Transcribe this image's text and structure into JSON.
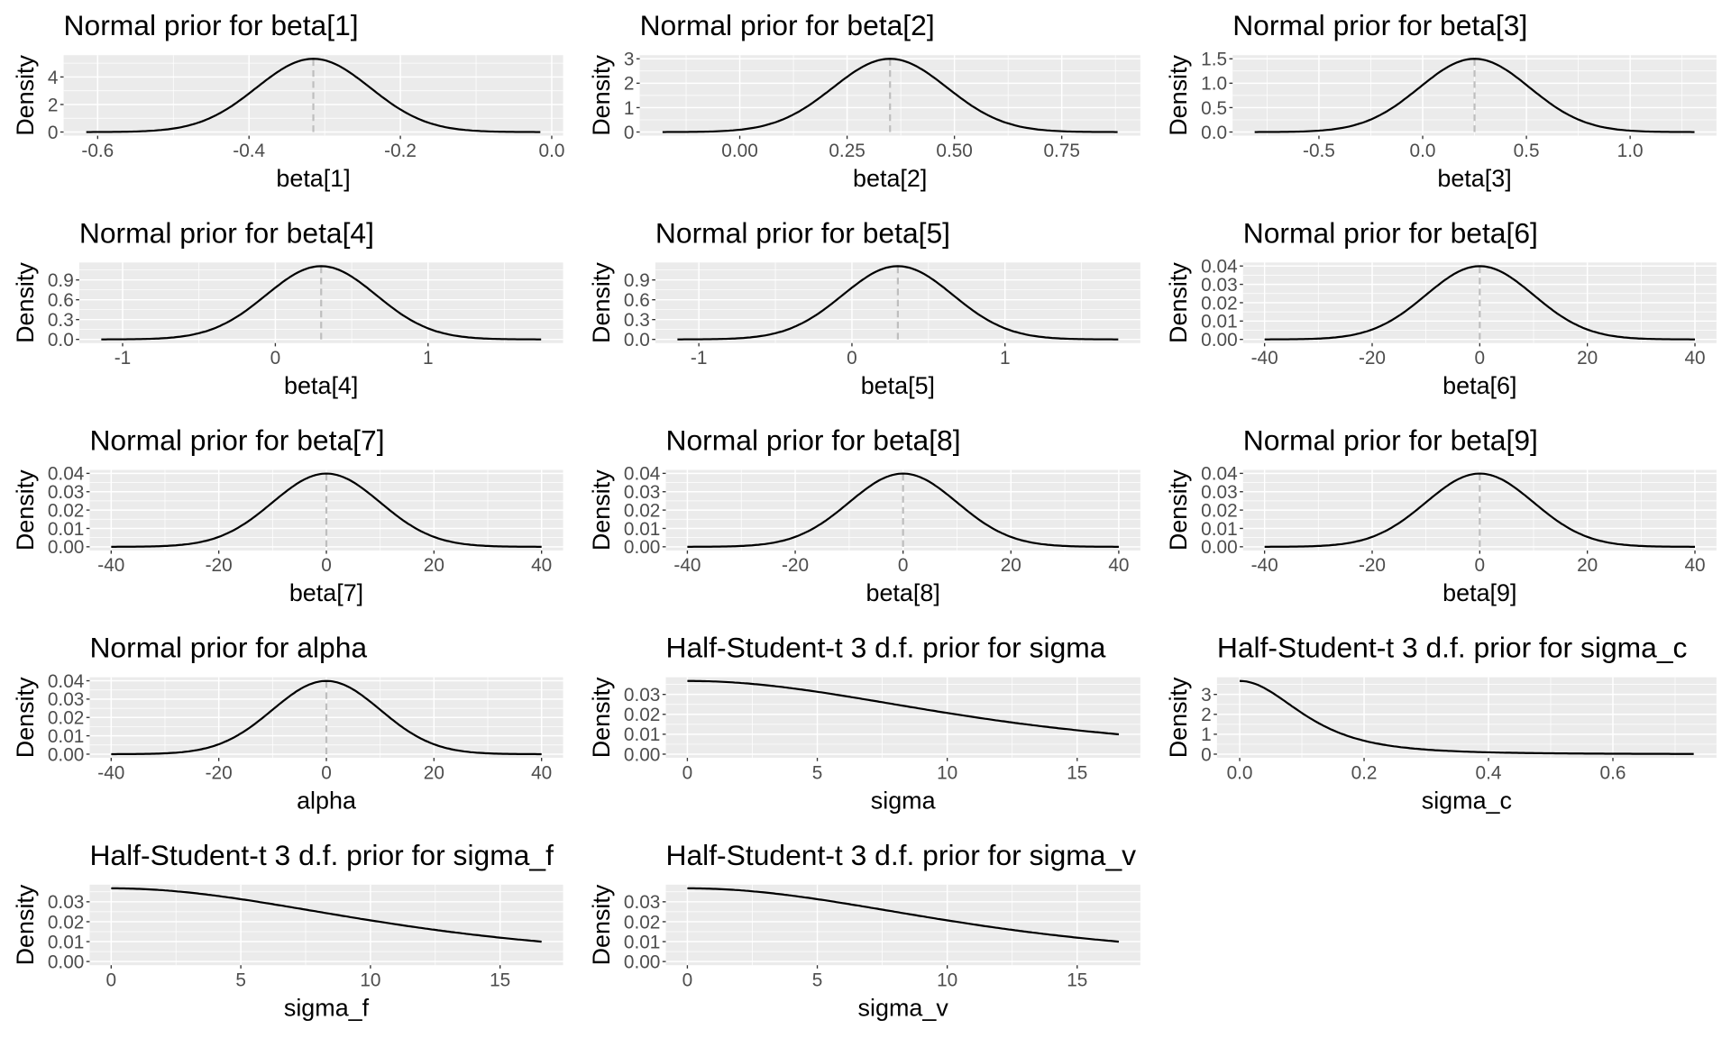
{
  "colors": {
    "panel_bg": "#EBEBEB",
    "grid": "#FFFFFF",
    "curve": "#000000",
    "mean_line": "#BEBEBE",
    "tick_text": "#4D4D4D"
  },
  "chart_data": [
    {
      "type": "line",
      "title": "Normal prior for beta[1]",
      "xlabel": "beta[1]",
      "ylabel": "Density",
      "distribution": "normal",
      "mean": -0.315,
      "sd": 0.075,
      "x_range": [
        -0.615,
        -0.015
      ],
      "mean_line": true,
      "grid": true,
      "x_ticks": [
        -0.6,
        -0.4,
        -0.2,
        0.0
      ],
      "x_tick_labels": [
        "-0.6",
        "-0.4",
        "-0.2",
        "0.0"
      ],
      "y_ticks": [
        0,
        2,
        4
      ],
      "y_tick_labels": [
        "0",
        "2",
        "4"
      ]
    },
    {
      "type": "line",
      "title": "Normal prior for beta[2]",
      "xlabel": "beta[2]",
      "ylabel": "Density",
      "distribution": "normal",
      "mean": 0.35,
      "sd": 0.133,
      "x_range": [
        -0.18,
        0.88
      ],
      "mean_line": true,
      "grid": true,
      "x_ticks": [
        0,
        0.25,
        0.5,
        0.75
      ],
      "x_tick_labels": [
        "0.00",
        "0.25",
        "0.50",
        "0.75"
      ],
      "y_ticks": [
        0,
        1,
        2,
        3
      ],
      "y_tick_labels": [
        "0",
        "1",
        "2",
        "3"
      ]
    },
    {
      "type": "line",
      "title": "Normal prior for beta[3]",
      "xlabel": "beta[3]",
      "ylabel": "Density",
      "distribution": "normal",
      "mean": 0.25,
      "sd": 0.266,
      "x_range": [
        -0.81,
        1.31
      ],
      "mean_line": true,
      "grid": true,
      "x_ticks": [
        -0.5,
        0,
        0.5,
        1.0
      ],
      "x_tick_labels": [
        "-0.5",
        "0.0",
        "0.5",
        "1.0"
      ],
      "y_ticks": [
        0,
        0.5,
        1.0,
        1.5
      ],
      "y_tick_labels": [
        "0.0",
        "0.5",
        "1.0",
        "1.5"
      ]
    },
    {
      "type": "line",
      "title": "Normal prior for beta[4]",
      "xlabel": "beta[4]",
      "ylabel": "Density",
      "distribution": "normal",
      "mean": 0.3,
      "sd": 0.36,
      "x_range": [
        -1.14,
        1.74
      ],
      "mean_line": true,
      "grid": true,
      "x_ticks": [
        -1,
        0,
        1
      ],
      "x_tick_labels": [
        "-1",
        "0",
        "1"
      ],
      "y_ticks": [
        0,
        0.3,
        0.6,
        0.9
      ],
      "y_tick_labels": [
        "0.0",
        "0.3",
        "0.6",
        "0.9"
      ]
    },
    {
      "type": "line",
      "title": "Normal prior for beta[5]",
      "xlabel": "beta[5]",
      "ylabel": "Density",
      "distribution": "normal",
      "mean": 0.3,
      "sd": 0.36,
      "x_range": [
        -1.14,
        1.74
      ],
      "mean_line": true,
      "grid": true,
      "x_ticks": [
        -1,
        0,
        1
      ],
      "x_tick_labels": [
        "-1",
        "0",
        "1"
      ],
      "y_ticks": [
        0,
        0.3,
        0.6,
        0.9
      ],
      "y_tick_labels": [
        "0.0",
        "0.3",
        "0.6",
        "0.9"
      ]
    },
    {
      "type": "line",
      "title": "Normal prior for beta[6]",
      "xlabel": "beta[6]",
      "ylabel": "Density",
      "distribution": "normal",
      "mean": 0,
      "sd": 10,
      "x_range": [
        -40,
        40
      ],
      "mean_line": true,
      "grid": true,
      "x_ticks": [
        -40,
        -20,
        0,
        20,
        40
      ],
      "x_tick_labels": [
        "-40",
        "-20",
        "0",
        "20",
        "40"
      ],
      "y_ticks": [
        0,
        0.01,
        0.02,
        0.03,
        0.04
      ],
      "y_tick_labels": [
        "0.00",
        "0.01",
        "0.02",
        "0.03",
        "0.04"
      ]
    },
    {
      "type": "line",
      "title": "Normal prior for beta[7]",
      "xlabel": "beta[7]",
      "ylabel": "Density",
      "distribution": "normal",
      "mean": 0,
      "sd": 10,
      "x_range": [
        -40,
        40
      ],
      "mean_line": true,
      "grid": true,
      "x_ticks": [
        -40,
        -20,
        0,
        20,
        40
      ],
      "x_tick_labels": [
        "-40",
        "-20",
        "0",
        "20",
        "40"
      ],
      "y_ticks": [
        0,
        0.01,
        0.02,
        0.03,
        0.04
      ],
      "y_tick_labels": [
        "0.00",
        "0.01",
        "0.02",
        "0.03",
        "0.04"
      ]
    },
    {
      "type": "line",
      "title": "Normal prior for beta[8]",
      "xlabel": "beta[8]",
      "ylabel": "Density",
      "distribution": "normal",
      "mean": 0,
      "sd": 10,
      "x_range": [
        -40,
        40
      ],
      "mean_line": true,
      "grid": true,
      "x_ticks": [
        -40,
        -20,
        0,
        20,
        40
      ],
      "x_tick_labels": [
        "-40",
        "-20",
        "0",
        "20",
        "40"
      ],
      "y_ticks": [
        0,
        0.01,
        0.02,
        0.03,
        0.04
      ],
      "y_tick_labels": [
        "0.00",
        "0.01",
        "0.02",
        "0.03",
        "0.04"
      ]
    },
    {
      "type": "line",
      "title": "Normal prior for beta[9]",
      "xlabel": "beta[9]",
      "ylabel": "Density",
      "distribution": "normal",
      "mean": 0,
      "sd": 10,
      "x_range": [
        -40,
        40
      ],
      "mean_line": true,
      "grid": true,
      "x_ticks": [
        -40,
        -20,
        0,
        20,
        40
      ],
      "x_tick_labels": [
        "-40",
        "-20",
        "0",
        "20",
        "40"
      ],
      "y_ticks": [
        0,
        0.01,
        0.02,
        0.03,
        0.04
      ],
      "y_tick_labels": [
        "0.00",
        "0.01",
        "0.02",
        "0.03",
        "0.04"
      ]
    },
    {
      "type": "line",
      "title": "Normal prior for alpha",
      "xlabel": "alpha",
      "ylabel": "Density",
      "distribution": "normal",
      "mean": 0,
      "sd": 10,
      "x_range": [
        -40,
        40
      ],
      "mean_line": true,
      "grid": true,
      "x_ticks": [
        -40,
        -20,
        0,
        20,
        40
      ],
      "x_tick_labels": [
        "-40",
        "-20",
        "0",
        "20",
        "40"
      ],
      "y_ticks": [
        0,
        0.01,
        0.02,
        0.03,
        0.04
      ],
      "y_tick_labels": [
        "0.00",
        "0.01",
        "0.02",
        "0.03",
        "0.04"
      ]
    },
    {
      "type": "line",
      "title": "Half-Student-t 3 d.f. prior for sigma",
      "xlabel": "sigma",
      "ylabel": "Density",
      "distribution": "half-student-t",
      "df": 3,
      "scale": 10,
      "x_range": [
        0,
        16.6
      ],
      "mean_line": false,
      "grid": true,
      "x_ticks": [
        0,
        5,
        10,
        15
      ],
      "x_tick_labels": [
        "0",
        "5",
        "10",
        "15"
      ],
      "y_ticks": [
        0,
        0.01,
        0.02,
        0.03
      ],
      "y_tick_labels": [
        "0.00",
        "0.01",
        "0.02",
        "0.03"
      ]
    },
    {
      "type": "line",
      "title": "Half-Student-t 3 d.f. prior for sigma_c",
      "xlabel": "sigma_c",
      "ylabel": "Density",
      "distribution": "half-student-t",
      "df": 3,
      "scale": 0.1,
      "x_range": [
        0,
        0.73
      ],
      "mean_line": false,
      "grid": true,
      "x_ticks": [
        0,
        0.2,
        0.4,
        0.6
      ],
      "x_tick_labels": [
        "0.0",
        "0.2",
        "0.4",
        "0.6"
      ],
      "y_ticks": [
        0,
        1,
        2,
        3
      ],
      "y_tick_labels": [
        "0",
        "1",
        "2",
        "3"
      ]
    },
    {
      "type": "line",
      "title": "Half-Student-t 3 d.f. prior for sigma_f",
      "xlabel": "sigma_f",
      "ylabel": "Density",
      "distribution": "half-student-t",
      "df": 3,
      "scale": 10,
      "x_range": [
        0,
        16.6
      ],
      "mean_line": false,
      "grid": true,
      "x_ticks": [
        0,
        5,
        10,
        15
      ],
      "x_tick_labels": [
        "0",
        "5",
        "10",
        "15"
      ],
      "y_ticks": [
        0,
        0.01,
        0.02,
        0.03
      ],
      "y_tick_labels": [
        "0.00",
        "0.01",
        "0.02",
        "0.03"
      ]
    },
    {
      "type": "line",
      "title": "Half-Student-t 3 d.f. prior for sigma_v",
      "xlabel": "sigma_v",
      "ylabel": "Density",
      "distribution": "half-student-t",
      "df": 3,
      "scale": 10,
      "x_range": [
        0,
        16.6
      ],
      "mean_line": false,
      "grid": true,
      "x_ticks": [
        0,
        5,
        10,
        15
      ],
      "x_tick_labels": [
        "0",
        "5",
        "10",
        "15"
      ],
      "y_ticks": [
        0,
        0.01,
        0.02,
        0.03
      ],
      "y_tick_labels": [
        "0.00",
        "0.01",
        "0.02",
        "0.03"
      ]
    }
  ]
}
